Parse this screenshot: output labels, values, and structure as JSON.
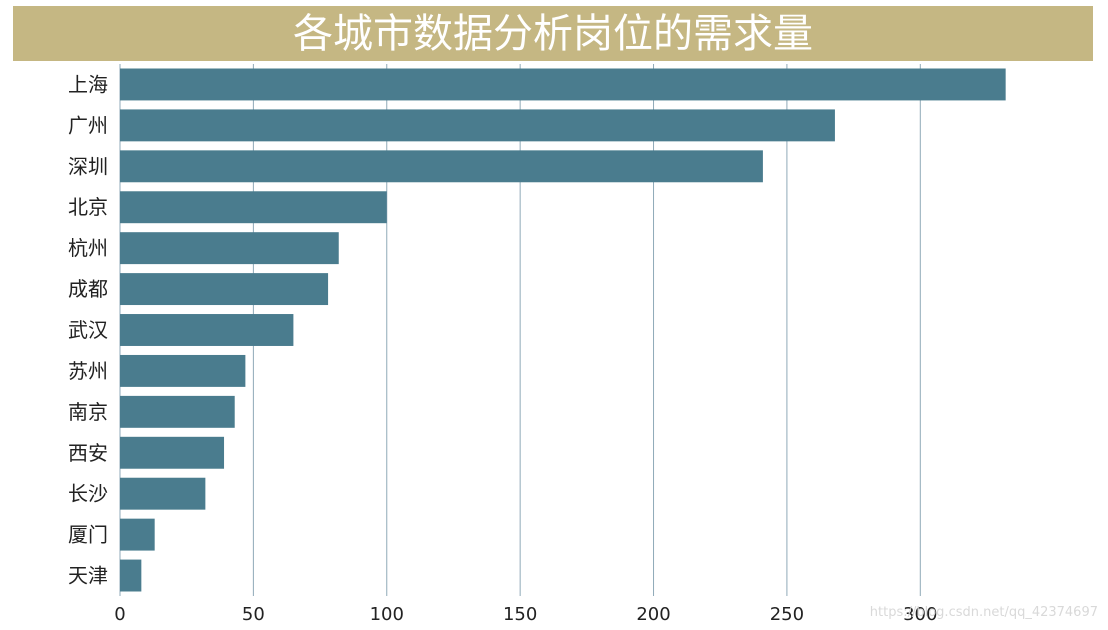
{
  "chart_data": {
    "type": "bar",
    "orientation": "horizontal",
    "title": "各城市数据分析岗位的需求量",
    "categories": [
      "上海",
      "广州",
      "深圳",
      "北京",
      "杭州",
      "成都",
      "武汉",
      "苏州",
      "南京",
      "西安",
      "长沙",
      "厦门",
      "天津"
    ],
    "values": [
      332,
      268,
      241,
      100,
      82,
      78,
      65,
      47,
      43,
      39,
      32,
      13,
      8
    ],
    "xlim": [
      0,
      340
    ],
    "xticks": [
      0,
      50,
      100,
      150,
      200,
      250,
      300
    ],
    "grid": true,
    "xlabel": "",
    "ylabel": ""
  },
  "colors": {
    "bar": "#4a7c8e",
    "title_bg": "#c5b783",
    "grid": "#8fa9b8"
  },
  "watermark": "https://blog.csdn.net/qq_42374697"
}
